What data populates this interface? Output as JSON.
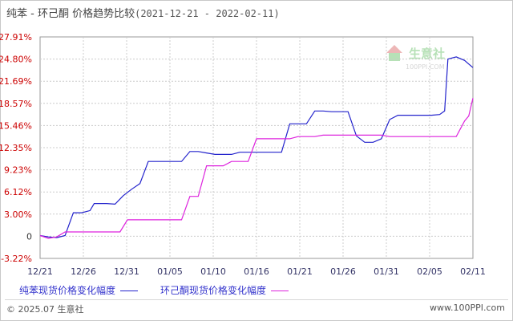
{
  "title": {
    "main": "纯苯 - 环己酮 价格趋势比较",
    "range": "(2021-12-21 - 2022-02-11)"
  },
  "watermark": {
    "cn": "生意社",
    "en": "100PPI.COM"
  },
  "legend": [
    {
      "label": "纯苯现货价格变化幅度",
      "color": "#2222cc"
    },
    {
      "label": "环己酮现货价格变化幅度",
      "color": "#dd22dd"
    }
  ],
  "footer": {
    "copyright": "© 2025.07 生意社",
    "url": "www.100PPI.com"
  },
  "colors": {
    "grid": "#cccccc",
    "axis_label": "#cc0000",
    "x_label": "#333366"
  },
  "chart_data": {
    "type": "line",
    "x_ticks": [
      "12/21",
      "12/26",
      "12/31",
      "01/05",
      "01/10",
      "01/16",
      "01/21",
      "01/26",
      "01/31",
      "02/05",
      "02/11"
    ],
    "y_ticks": [
      "27.91%",
      "24.80%",
      "21.69%",
      "18.57%",
      "15.46%",
      "12.35%",
      "9.23%",
      "6.12%",
      "3.00%",
      "0",
      "-3.22%"
    ],
    "ylim": [
      -3.22,
      27.91
    ],
    "xlim": [
      0,
      52
    ],
    "grid": true,
    "legend_position": "bottom",
    "series": [
      {
        "name": "纯苯现货价格变化幅度",
        "color": "#2222cc",
        "points": [
          [
            0,
            0
          ],
          [
            1,
            -0.2
          ],
          [
            2,
            -0.3
          ],
          [
            3,
            0
          ],
          [
            4,
            3.2
          ],
          [
            5,
            3.2
          ],
          [
            6,
            3.5
          ],
          [
            6.5,
            4.5
          ],
          [
            8,
            4.5
          ],
          [
            9,
            4.4
          ],
          [
            10,
            5.6
          ],
          [
            11,
            6.5
          ],
          [
            12,
            7.3
          ],
          [
            13,
            10.4
          ],
          [
            15,
            10.4
          ],
          [
            17,
            10.4
          ],
          [
            18,
            11.8
          ],
          [
            19,
            11.8
          ],
          [
            20,
            11.6
          ],
          [
            21,
            11.4
          ],
          [
            22,
            11.4
          ],
          [
            23,
            11.4
          ],
          [
            24,
            11.7
          ],
          [
            25,
            11.7
          ],
          [
            26,
            11.7
          ],
          [
            27,
            11.7
          ],
          [
            28,
            11.7
          ],
          [
            29,
            11.7
          ],
          [
            30,
            15.7
          ],
          [
            31,
            15.7
          ],
          [
            32,
            15.7
          ],
          [
            33,
            17.5
          ],
          [
            34,
            17.5
          ],
          [
            35,
            17.4
          ],
          [
            36,
            17.4
          ],
          [
            37,
            17.4
          ],
          [
            38,
            14.0
          ],
          [
            39,
            13.1
          ],
          [
            40,
            13.1
          ],
          [
            41,
            13.6
          ],
          [
            42,
            16.3
          ],
          [
            43,
            16.9
          ],
          [
            44,
            16.9
          ],
          [
            45,
            16.9
          ],
          [
            46,
            16.9
          ],
          [
            47,
            16.9
          ],
          [
            48,
            17.0
          ],
          [
            48.6,
            17.5
          ],
          [
            49,
            24.8
          ],
          [
            50,
            25.1
          ],
          [
            51,
            24.6
          ],
          [
            51.5,
            24.1
          ],
          [
            52,
            23.6
          ]
        ]
      },
      {
        "name": "环己酮现货价格变化幅度",
        "color": "#dd22dd",
        "points": [
          [
            0,
            0
          ],
          [
            1,
            -0.4
          ],
          [
            2,
            -0.2
          ],
          [
            3,
            0.5
          ],
          [
            4,
            0.5
          ],
          [
            5,
            0.5
          ],
          [
            6,
            0.5
          ],
          [
            7,
            0.5
          ],
          [
            8,
            0.5
          ],
          [
            9,
            0.5
          ],
          [
            9.6,
            0.5
          ],
          [
            10.5,
            2.2
          ],
          [
            11,
            2.2
          ],
          [
            12,
            2.2
          ],
          [
            13,
            2.2
          ],
          [
            14,
            2.2
          ],
          [
            15,
            2.2
          ],
          [
            16,
            2.2
          ],
          [
            17,
            2.2
          ],
          [
            18,
            5.5
          ],
          [
            19,
            5.5
          ],
          [
            20,
            9.8
          ],
          [
            21,
            9.8
          ],
          [
            22,
            9.8
          ],
          [
            23,
            10.4
          ],
          [
            24,
            10.4
          ],
          [
            25,
            10.4
          ],
          [
            26,
            13.6
          ],
          [
            27,
            13.6
          ],
          [
            28,
            13.6
          ],
          [
            29,
            13.6
          ],
          [
            30,
            13.6
          ],
          [
            31,
            13.9
          ],
          [
            32,
            13.9
          ],
          [
            33,
            13.9
          ],
          [
            34,
            14.1
          ],
          [
            35,
            14.1
          ],
          [
            36,
            14.1
          ],
          [
            37,
            14.1
          ],
          [
            38,
            14.1
          ],
          [
            39,
            14.1
          ],
          [
            40,
            14.1
          ],
          [
            41,
            14.1
          ],
          [
            42,
            13.9
          ],
          [
            43,
            13.9
          ],
          [
            44,
            13.9
          ],
          [
            45,
            13.9
          ],
          [
            46,
            13.9
          ],
          [
            47,
            13.9
          ],
          [
            48,
            13.9
          ],
          [
            49,
            13.9
          ],
          [
            50,
            13.9
          ],
          [
            51,
            16.1
          ],
          [
            51.5,
            16.8
          ],
          [
            52,
            19.3
          ]
        ]
      }
    ]
  }
}
